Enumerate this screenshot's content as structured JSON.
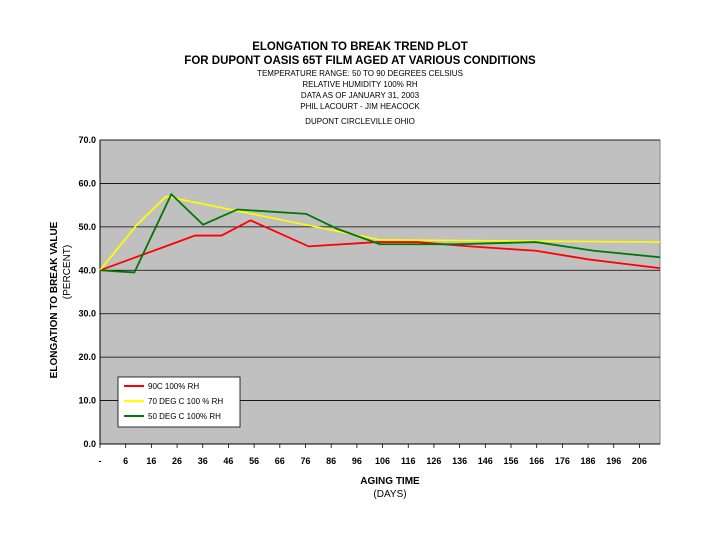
{
  "title": {
    "line1": "ELONGATION TO BREAK TREND PLOT",
    "line2": "FOR DUPONT OASIS 65T FILM AGED AT VARIOUS CONDITIONS",
    "sub1": "TEMPERATURE RANGE: 50 TO 90 DEGREES CELSIUS",
    "sub2": "RELATIVE HUMIDITY 100% RH",
    "sub3": "DATA AS OF JANUARY 31, 2003",
    "sub4": "PHIL LACOURT - JIM HEACOCK",
    "sub5": "DUPONT CIRCLEVILLE OHIO"
  },
  "chart_data": {
    "type": "line",
    "x_categories": [
      "-",
      "6",
      "16",
      "26",
      "36",
      "46",
      "56",
      "66",
      "76",
      "86",
      "96",
      "106",
      "116",
      "126",
      "136",
      "146",
      "156",
      "166",
      "176",
      "186",
      "196",
      "206"
    ],
    "xlabel": "AGING TIME",
    "xlabel_sub": "(DAYS)",
    "ylabel": "ELONGATION TO BREAK VALUE",
    "ylabel_sub": "(PERCENT)",
    "ylim": [
      0,
      70
    ],
    "y_ticks": [
      "0.0",
      "10.0",
      "20.0",
      "30.0",
      "40.0",
      "50.0",
      "60.0",
      "70.0"
    ],
    "grid": true,
    "legend_position": "bottom-left",
    "plot_background": "#c0c0c0",
    "series": [
      {
        "name": "90C 100% RH",
        "color": "#ff0000",
        "x": [
          0,
          27,
          36,
          46,
          57,
          79,
          105,
          120,
          140,
          165,
          185,
          205,
          212
        ],
        "y": [
          40.0,
          46.0,
          48.0,
          48.0,
          51.5,
          45.5,
          46.5,
          46.5,
          45.5,
          44.5,
          42.5,
          41.0,
          40.5
        ]
      },
      {
        "name": "70 DEG C 100 % RH",
        "color": "#ffff00",
        "x": [
          0,
          14,
          25
        ],
        "y": [
          40.0,
          50.5,
          57.0
        ]
      },
      {
        "name": "50 DEG C 100% RH",
        "color": "#007700",
        "x": [
          0,
          13,
          27,
          39,
          52,
          78,
          90,
          106,
          120,
          135,
          165,
          187,
          212
        ],
        "y": [
          40.0,
          39.5,
          57.5,
          50.5,
          54.0,
          53.0,
          49.5,
          46.0,
          46.0,
          46.0,
          46.5,
          44.5,
          43.0
        ]
      }
    ],
    "extra_lines": [
      {
        "color": "#ffff00",
        "x": [
          25,
          106,
          212
        ],
        "y": [
          57.0,
          47.0,
          46.5
        ]
      }
    ]
  }
}
